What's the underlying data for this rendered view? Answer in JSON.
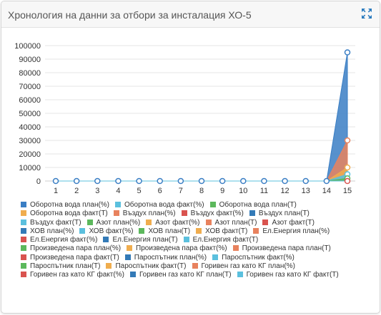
{
  "header": {
    "title": "Хронология на данни за отбори за инсталация ХО-5"
  },
  "icons": {
    "expand": "expand-icon"
  },
  "chart_data": {
    "type": "area",
    "title": "Хронология на данни за отбори за инсталация ХО-5",
    "xlabel": "",
    "ylabel": "",
    "categories": [
      "1",
      "2",
      "3",
      "4",
      "5",
      "6",
      "7",
      "8",
      "9",
      "10",
      "11",
      "12",
      "13",
      "14",
      "15"
    ],
    "ylim": [
      0,
      100000
    ],
    "yticks": [
      "0",
      "10000",
      "20000",
      "30000",
      "40000",
      "50000",
      "60000",
      "70000",
      "80000",
      "90000",
      "100000"
    ],
    "grid": true,
    "legend_position": "bottom",
    "series": [
      {
        "name": "Оборотна вода план(%)",
        "color": "#3a7ec4",
        "values": [
          0,
          0,
          0,
          0,
          0,
          0,
          0,
          0,
          0,
          0,
          0,
          0,
          0,
          0,
          95000
        ]
      },
      {
        "name": "Оборотна вода факт(%)",
        "color": "#5bc0de",
        "values": [
          0,
          0,
          0,
          0,
          0,
          0,
          0,
          0,
          0,
          0,
          0,
          0,
          0,
          0,
          5000
        ]
      },
      {
        "name": "Оборотна вода план(T)",
        "color": "#5cb85c",
        "values": [
          0,
          0,
          0,
          0,
          0,
          0,
          0,
          0,
          0,
          0,
          0,
          0,
          0,
          0,
          2000
        ]
      },
      {
        "name": "Оборотна вода факт(T)",
        "color": "#f0ad4e",
        "values": [
          0,
          0,
          0,
          0,
          0,
          0,
          0,
          0,
          0,
          0,
          0,
          0,
          0,
          0,
          10000
        ]
      },
      {
        "name": "Въздух план(%)",
        "color": "#e8825e",
        "values": [
          0,
          0,
          0,
          0,
          0,
          0,
          0,
          0,
          0,
          0,
          0,
          0,
          0,
          0,
          30000
        ]
      },
      {
        "name": "Въздух факт(%)",
        "color": "#d9534f",
        "values": [
          0,
          0,
          0,
          0,
          0,
          0,
          0,
          0,
          0,
          0,
          0,
          0,
          0,
          0,
          0
        ]
      },
      {
        "name": "Въздух план(T)",
        "color": "#337ab7",
        "values": [
          0,
          0,
          0,
          0,
          0,
          0,
          0,
          0,
          0,
          0,
          0,
          0,
          0,
          0,
          0
        ]
      },
      {
        "name": "Въздух факт(T)",
        "color": "#5bc0de",
        "values": [
          0,
          0,
          0,
          0,
          0,
          0,
          0,
          0,
          0,
          0,
          0,
          0,
          0,
          0,
          0
        ]
      },
      {
        "name": "Азот план(%)",
        "color": "#5cb85c",
        "values": [
          0,
          0,
          0,
          0,
          0,
          0,
          0,
          0,
          0,
          0,
          0,
          0,
          0,
          0,
          0
        ]
      },
      {
        "name": "Азот факт(%)",
        "color": "#f0ad4e",
        "values": [
          0,
          0,
          0,
          0,
          0,
          0,
          0,
          0,
          0,
          0,
          0,
          0,
          0,
          0,
          0
        ]
      },
      {
        "name": "Азот план(T)",
        "color": "#e8825e",
        "values": [
          0,
          0,
          0,
          0,
          0,
          0,
          0,
          0,
          0,
          0,
          0,
          0,
          0,
          0,
          0
        ]
      },
      {
        "name": "Азот факт(T)",
        "color": "#d9534f",
        "values": [
          0,
          0,
          0,
          0,
          0,
          0,
          0,
          0,
          0,
          0,
          0,
          0,
          0,
          0,
          0
        ]
      },
      {
        "name": "ХОВ план(%)",
        "color": "#337ab7",
        "values": [
          0,
          0,
          0,
          0,
          0,
          0,
          0,
          0,
          0,
          0,
          0,
          0,
          0,
          0,
          0
        ]
      },
      {
        "name": "ХОВ факт(%)",
        "color": "#5bc0de",
        "values": [
          0,
          0,
          0,
          0,
          0,
          0,
          0,
          0,
          0,
          0,
          0,
          0,
          0,
          0,
          0
        ]
      },
      {
        "name": "ХОВ план(T)",
        "color": "#5cb85c",
        "values": [
          0,
          0,
          0,
          0,
          0,
          0,
          0,
          0,
          0,
          0,
          0,
          0,
          0,
          0,
          0
        ]
      },
      {
        "name": "ХОВ факт(T)",
        "color": "#f0ad4e",
        "values": [
          0,
          0,
          0,
          0,
          0,
          0,
          0,
          0,
          0,
          0,
          0,
          0,
          0,
          0,
          0
        ]
      },
      {
        "name": "Ел.Енергия план(%)",
        "color": "#e8825e",
        "values": [
          0,
          0,
          0,
          0,
          0,
          0,
          0,
          0,
          0,
          0,
          0,
          0,
          0,
          0,
          0
        ]
      },
      {
        "name": "Ел.Енергия факт(%)",
        "color": "#d9534f",
        "values": [
          0,
          0,
          0,
          0,
          0,
          0,
          0,
          0,
          0,
          0,
          0,
          0,
          0,
          0,
          0
        ]
      },
      {
        "name": "Ел.Енергия план(T)",
        "color": "#337ab7",
        "values": [
          0,
          0,
          0,
          0,
          0,
          0,
          0,
          0,
          0,
          0,
          0,
          0,
          0,
          0,
          0
        ]
      },
      {
        "name": "Ел.Енергия факт(T)",
        "color": "#5bc0de",
        "values": [
          0,
          0,
          0,
          0,
          0,
          0,
          0,
          0,
          0,
          0,
          0,
          0,
          0,
          0,
          0
        ]
      },
      {
        "name": "Произведена пара план(%)",
        "color": "#5cb85c",
        "values": [
          0,
          0,
          0,
          0,
          0,
          0,
          0,
          0,
          0,
          0,
          0,
          0,
          0,
          0,
          0
        ]
      },
      {
        "name": "Произведена пара факт(%)",
        "color": "#f0ad4e",
        "values": [
          0,
          0,
          0,
          0,
          0,
          0,
          0,
          0,
          0,
          0,
          0,
          0,
          0,
          0,
          0
        ]
      },
      {
        "name": "Произведена пара план(T)",
        "color": "#e8825e",
        "values": [
          0,
          0,
          0,
          0,
          0,
          0,
          0,
          0,
          0,
          0,
          0,
          0,
          0,
          0,
          0
        ]
      },
      {
        "name": "Произведена пара факт(T)",
        "color": "#d9534f",
        "values": [
          0,
          0,
          0,
          0,
          0,
          0,
          0,
          0,
          0,
          0,
          0,
          0,
          0,
          0,
          0
        ]
      },
      {
        "name": "Пароспътник план(%)",
        "color": "#337ab7",
        "values": [
          0,
          0,
          0,
          0,
          0,
          0,
          0,
          0,
          0,
          0,
          0,
          0,
          0,
          0,
          0
        ]
      },
      {
        "name": "Пароспътник факт(%)",
        "color": "#5bc0de",
        "values": [
          0,
          0,
          0,
          0,
          0,
          0,
          0,
          0,
          0,
          0,
          0,
          0,
          0,
          0,
          0
        ]
      },
      {
        "name": "Пароспътник план(T)",
        "color": "#5cb85c",
        "values": [
          0,
          0,
          0,
          0,
          0,
          0,
          0,
          0,
          0,
          0,
          0,
          0,
          0,
          0,
          0
        ]
      },
      {
        "name": "Пароспътник факт(T)",
        "color": "#f0ad4e",
        "values": [
          0,
          0,
          0,
          0,
          0,
          0,
          0,
          0,
          0,
          0,
          0,
          0,
          0,
          0,
          0
        ]
      },
      {
        "name": "Горивен газ като КГ план(%)",
        "color": "#e8825e",
        "values": [
          0,
          0,
          0,
          0,
          0,
          0,
          0,
          0,
          0,
          0,
          0,
          0,
          0,
          0,
          0
        ]
      },
      {
        "name": "Горивен газ като КГ факт(%)",
        "color": "#d9534f",
        "values": [
          0,
          0,
          0,
          0,
          0,
          0,
          0,
          0,
          0,
          0,
          0,
          0,
          0,
          0,
          0
        ]
      },
      {
        "name": "Горивен газ като КГ план(T)",
        "color": "#337ab7",
        "values": [
          0,
          0,
          0,
          0,
          0,
          0,
          0,
          0,
          0,
          0,
          0,
          0,
          0,
          0,
          0
        ]
      },
      {
        "name": "Горивен газ като КГ факт(T)",
        "color": "#5bc0de",
        "values": [
          0,
          0,
          0,
          0,
          0,
          0,
          0,
          0,
          0,
          0,
          0,
          0,
          0,
          0,
          0
        ]
      }
    ]
  }
}
